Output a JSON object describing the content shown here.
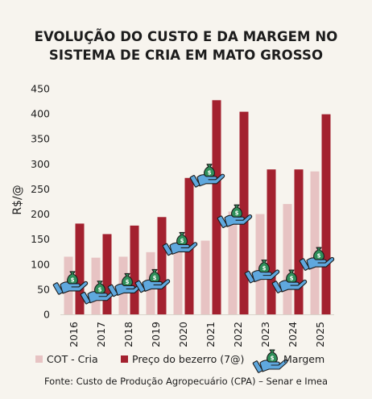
{
  "chart_data": {
    "type": "bar",
    "title_line1": "EVOLUÇÃO DO CUSTO E DA MARGEM NO",
    "title_line2": "SISTEMA DE CRIA EM MATO GROSSO",
    "ylabel": "R$/@",
    "xlabel": "",
    "ylim": [
      0,
      450
    ],
    "yticks": [
      0,
      50,
      100,
      150,
      200,
      250,
      300,
      350,
      400,
      450
    ],
    "grid": false,
    "legend_position": "bottom",
    "categories": [
      "2016",
      "2017",
      "2018",
      "2019",
      "2020",
      "2021",
      "2022",
      "2023",
      "2024",
      "2025"
    ],
    "series": [
      {
        "name": "COT - Cria",
        "kind": "bar",
        "color": "#e7c3c3",
        "values": [
          115,
          113,
          115,
          124,
          128,
          147,
          205,
          200,
          220,
          285
        ]
      },
      {
        "name": "Preço do bezerro (7@)",
        "kind": "bar",
        "color": "#a3212f",
        "values": [
          181,
          160,
          177,
          194,
          272,
          427,
          404,
          289,
          289,
          399
        ]
      },
      {
        "name": "Margem",
        "kind": "marker",
        "icon": "money-bag-hand-icon",
        "values": [
          66,
          47,
          62,
          70,
          144,
          280,
          199,
          89,
          69,
          114
        ]
      }
    ],
    "source": "Fonte: Custo de Produção Agropecuário (CPA) – Senar e Imea"
  },
  "colors": {
    "background": "#f7f4ee",
    "icon_bag": "#2f8f5a",
    "icon_hand": "#5fa8de",
    "axis": "#1c1c1c"
  }
}
